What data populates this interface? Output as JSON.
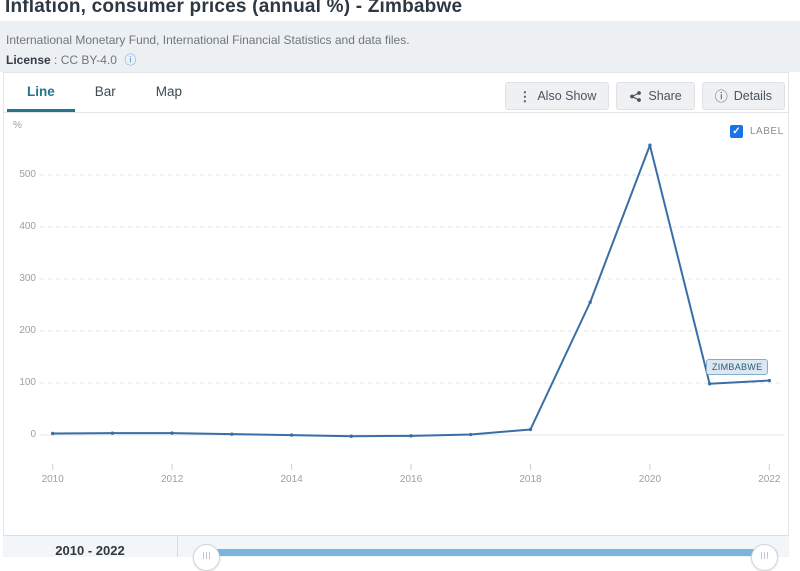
{
  "header": {
    "title": "Inflation, consumer prices (annual %) - Zimbabwe",
    "source": "International Monetary Fund, International Financial Statistics and data files.",
    "license_label": "License",
    "license_value": ": CC BY-4.0"
  },
  "tabs": [
    {
      "label": "Line",
      "active": true
    },
    {
      "label": "Bar",
      "active": false
    },
    {
      "label": "Map",
      "active": false
    }
  ],
  "toolbar": {
    "also_show": "Also Show",
    "share": "Share",
    "details": "Details"
  },
  "legend": {
    "label": "LABEL",
    "checked": true,
    "checkmark": "✓"
  },
  "chart_data": {
    "type": "line",
    "title": "Inflation, consumer prices (annual %) - Zimbabwe",
    "ylabel": "%",
    "x": [
      2010,
      2011,
      2012,
      2013,
      2014,
      2015,
      2016,
      2017,
      2018,
      2019,
      2020,
      2021,
      2022
    ],
    "series": [
      {
        "name": "ZIMBABWE",
        "color": "#3a6ea5",
        "values": [
          3.0,
          3.5,
          3.7,
          1.6,
          -0.2,
          -2.4,
          -1.6,
          0.9,
          10.6,
          255.3,
          557.2,
          98.5,
          104.7
        ]
      }
    ],
    "xticks": [
      2010,
      2012,
      2014,
      2016,
      2018,
      2020,
      2022
    ],
    "yticks": [
      0,
      100,
      200,
      300,
      400,
      500
    ],
    "ylim": [
      -30,
      585
    ],
    "grid": "horizontal-dashed",
    "legend_position": "top-right",
    "annotation": "ZIMBABWE"
  },
  "range_slider": {
    "label": "2010 - 2022"
  },
  "colors": {
    "accent_teal": "#26738e",
    "line_blue": "#3a6ea5",
    "checkbox_blue": "#1a73e8",
    "slider_blue": "#79b5df"
  }
}
